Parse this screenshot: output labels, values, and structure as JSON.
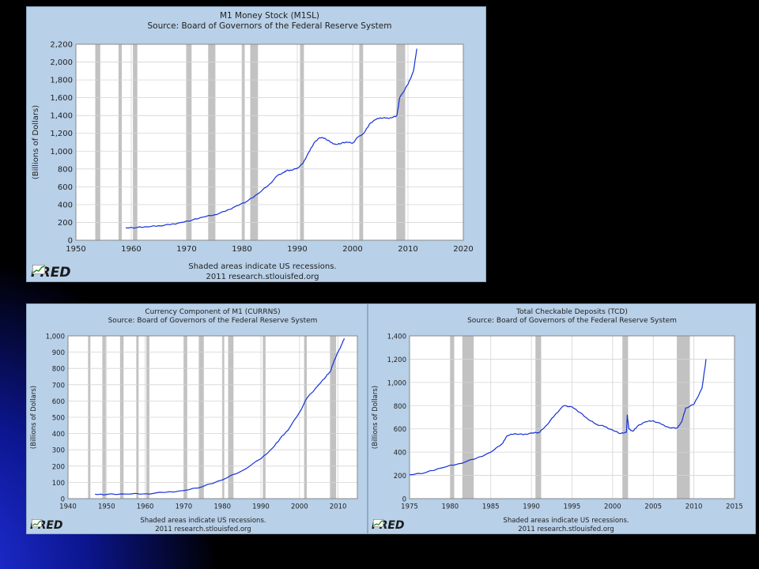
{
  "slide": {
    "background": "#000000",
    "accent": "#1a2bd0"
  },
  "fred": {
    "logo_text": "FRED",
    "footer_line1": "Shaded areas indicate US recessions.",
    "footer_line2": "2011 research.stlouisfed.org"
  },
  "colors": {
    "panel": "#b8d0e8",
    "plot_bg": "#ffffff",
    "line": "#1530d8",
    "recession": "#c2c2c2",
    "grid": "#d4d4d4"
  },
  "chart_data": [
    {
      "id": "m1",
      "type": "line",
      "title": "M1 Money Stock (M1SL)",
      "subtitle": "Source: Board of Governors of the Federal Reserve System",
      "ylabel": "(Billions of Dollars)",
      "xlim": [
        1950,
        2020
      ],
      "ylim": [
        0,
        2200
      ],
      "xticks": [
        1950,
        1960,
        1970,
        1980,
        1990,
        2000,
        2010,
        2020
      ],
      "yticks": [
        0,
        200,
        400,
        600,
        800,
        1000,
        1200,
        1400,
        1600,
        1800,
        2000,
        2200
      ],
      "xtick_labels": [
        "1950",
        "1960",
        "1970",
        "1980",
        "1990",
        "2000",
        "2010",
        "2020"
      ],
      "ytick_labels": [
        "0",
        "200",
        "400",
        "600",
        "800",
        "1,000",
        "1,200",
        "1,400",
        "1,600",
        "1,800",
        "2,000",
        "2,200"
      ],
      "grid": true,
      "recessions": [
        [
          1953.5,
          1954.4
        ],
        [
          1957.7,
          1958.3
        ],
        [
          1960.3,
          1961.1
        ],
        [
          1969.9,
          1970.9
        ],
        [
          1973.9,
          1975.2
        ],
        [
          1980.0,
          1980.5
        ],
        [
          1981.5,
          1982.9
        ],
        [
          1990.5,
          1991.2
        ],
        [
          2001.2,
          2001.9
        ],
        [
          2007.9,
          2009.5
        ]
      ],
      "series": [
        {
          "x": [
            1959,
            1961,
            1963,
            1965,
            1967,
            1969,
            1971,
            1973,
            1975,
            1977,
            1979,
            1981,
            1983,
            1985,
            1986.5,
            1987.5,
            1988,
            1989,
            1990,
            1991,
            1992,
            1993,
            1994,
            1995,
            1996,
            1997,
            1998,
            1999,
            2000,
            2001,
            2002,
            2003,
            2004,
            2005,
            2006,
            2007,
            2008,
            2008.5,
            2009,
            2010,
            2011,
            2011.6
          ],
          "y": [
            140,
            143,
            150,
            163,
            175,
            200,
            225,
            260,
            285,
            325,
            385,
            440,
            525,
            630,
            730,
            760,
            780,
            785,
            810,
            860,
            980,
            1090,
            1150,
            1145,
            1100,
            1075,
            1090,
            1100,
            1090,
            1160,
            1200,
            1300,
            1350,
            1375,
            1370,
            1375,
            1400,
            1600,
            1650,
            1750,
            1900,
            2150
          ]
        }
      ]
    },
    {
      "id": "currns",
      "type": "line",
      "title": "Currency Component of M1 (CURRNS)",
      "subtitle": "Source: Board of Governors of the Federal Reserve System",
      "ylabel": "(Billions of Dollars)",
      "xlim": [
        1940,
        2015
      ],
      "ylim": [
        0,
        1000
      ],
      "xticks": [
        1940,
        1950,
        1960,
        1970,
        1980,
        1990,
        2000,
        2010
      ],
      "yticks": [
        0,
        100,
        200,
        300,
        400,
        500,
        600,
        700,
        800,
        900,
        1000
      ],
      "xtick_labels": [
        "1940",
        "1950",
        "1960",
        "1970",
        "1980",
        "1990",
        "2000",
        "2010"
      ],
      "ytick_labels": [
        "0",
        "100",
        "200",
        "300",
        "400",
        "500",
        "600",
        "700",
        "800",
        "900",
        "1,000"
      ],
      "grid": true,
      "recessions": [
        [
          1945.2,
          1945.8
        ],
        [
          1948.9,
          1949.8
        ],
        [
          1953.5,
          1954.4
        ],
        [
          1957.7,
          1958.3
        ],
        [
          1960.3,
          1961.1
        ],
        [
          1969.9,
          1970.9
        ],
        [
          1973.9,
          1975.2
        ],
        [
          1980.0,
          1980.5
        ],
        [
          1981.5,
          1982.9
        ],
        [
          1990.5,
          1991.2
        ],
        [
          2001.2,
          2001.9
        ],
        [
          2007.9,
          2009.5
        ]
      ],
      "series": [
        {
          "x": [
            1947,
            1950,
            1955,
            1960,
            1965,
            1970,
            1975,
            1980,
            1985,
            1990,
            1993,
            1995,
            1997,
            2000,
            2002,
            2005,
            2007,
            2008,
            2009,
            2010,
            2011,
            2011.6
          ],
          "y": [
            27,
            26,
            28,
            30,
            38,
            50,
            75,
            115,
            170,
            245,
            310,
            370,
            420,
            530,
            620,
            700,
            755,
            780,
            850,
            900,
            950,
            985
          ]
        }
      ]
    },
    {
      "id": "tcd",
      "type": "line",
      "title": "Total Checkable Deposits (TCD)",
      "subtitle": "Source: Board of Governors of the Federal Reserve System",
      "ylabel": "(Billions of Dollars)",
      "xlim": [
        1975,
        2015
      ],
      "ylim": [
        0,
        1400
      ],
      "xticks": [
        1975,
        1980,
        1985,
        1990,
        1995,
        2000,
        2005,
        2010,
        2015
      ],
      "yticks": [
        0,
        200,
        400,
        600,
        800,
        1000,
        1200,
        1400
      ],
      "xtick_labels": [
        "1975",
        "1980",
        "1985",
        "1990",
        "1995",
        "2000",
        "2005",
        "2010",
        "2015"
      ],
      "ytick_labels": [
        "0",
        "200",
        "400",
        "600",
        "800",
        "1,000",
        "1,200",
        "1,400"
      ],
      "grid": true,
      "recessions": [
        [
          1980.0,
          1980.5
        ],
        [
          1981.5,
          1982.9
        ],
        [
          1990.5,
          1991.2
        ],
        [
          2001.2,
          2001.9
        ],
        [
          2007.9,
          2009.5
        ]
      ],
      "series": [
        {
          "x": [
            1975,
            1977,
            1979,
            1981,
            1983,
            1985,
            1986.5,
            1987,
            1988,
            1989,
            1990,
            1991,
            1992,
            1993,
            1994,
            1995,
            1996,
            1997,
            1998,
            1999,
            2000,
            2001,
            2001.7,
            2001.8,
            2002,
            2002.5,
            2003,
            2004,
            2005,
            2006,
            2007,
            2008,
            2008.5,
            2009,
            2010,
            2011,
            2011.5
          ],
          "y": [
            205,
            225,
            265,
            300,
            340,
            400,
            480,
            540,
            560,
            550,
            565,
            570,
            640,
            730,
            800,
            790,
            740,
            680,
            640,
            620,
            590,
            560,
            570,
            720,
            600,
            580,
            620,
            660,
            670,
            640,
            610,
            610,
            660,
            780,
            810,
            950,
            1200
          ]
        }
      ]
    }
  ]
}
